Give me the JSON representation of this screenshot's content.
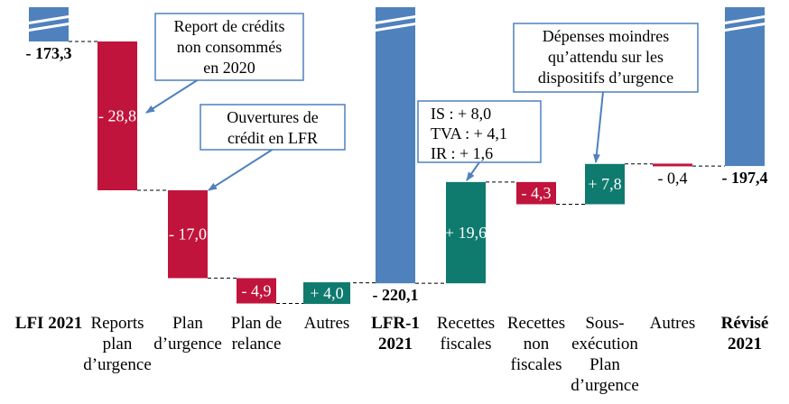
{
  "colors": {
    "total": "#4f81bd",
    "negative": "#c0143c",
    "positive": "#0f7a6e",
    "arrow": "#4f81bd",
    "connector": "#000000"
  },
  "chart_data": {
    "type": "bar",
    "subtype": "waterfall",
    "unit": "Md€",
    "axis_break": true,
    "categories": [
      [
        "LFI 2021"
      ],
      [
        "Reports",
        "plan",
        "d’urgence"
      ],
      [
        "Plan",
        "d’urgence"
      ],
      [
        "Plan de",
        "relance"
      ],
      [
        "Autres"
      ],
      [
        "LFR-1",
        "2021"
      ],
      [
        "Recettes",
        "fiscales"
      ],
      [
        "Recettes",
        "non",
        "fiscales"
      ],
      [
        "Sous-",
        "exécution",
        "Plan",
        "d’urgence"
      ],
      [
        "Autres"
      ],
      [
        "Révisé",
        "2021"
      ]
    ],
    "category_bold": [
      true,
      false,
      false,
      false,
      false,
      true,
      false,
      false,
      false,
      false,
      true
    ],
    "kinds": [
      "total",
      "delta",
      "delta",
      "delta",
      "delta",
      "total",
      "delta",
      "delta",
      "delta",
      "delta",
      "total"
    ],
    "values": [
      -173.3,
      -28.8,
      -17.0,
      -4.9,
      4.0,
      -220.1,
      19.6,
      -4.3,
      7.8,
      -0.4,
      -197.4
    ],
    "labels": [
      "- 173,3",
      "- 28,8",
      "- 17,0",
      "- 4,9",
      "+ 4,0",
      "- 220,1",
      "+ 19,6",
      "- 4,3",
      "+ 7,8",
      "- 0,4",
      "- 197,4"
    ],
    "annotations": [
      {
        "lines": [
          "Report de crédits",
          "non consommés",
          "en 2020"
        ]
      },
      {
        "lines": [
          "Ouvertures de",
          "crédit en LFR"
        ]
      },
      {
        "lines": [
          "IS :      + 8,0",
          "TVA :   + 4,1",
          "IR :      + 1,6"
        ]
      },
      {
        "lines": [
          "Dépenses moindres",
          "qu’attendu sur les",
          "dispositifs d’urgence"
        ]
      }
    ]
  }
}
